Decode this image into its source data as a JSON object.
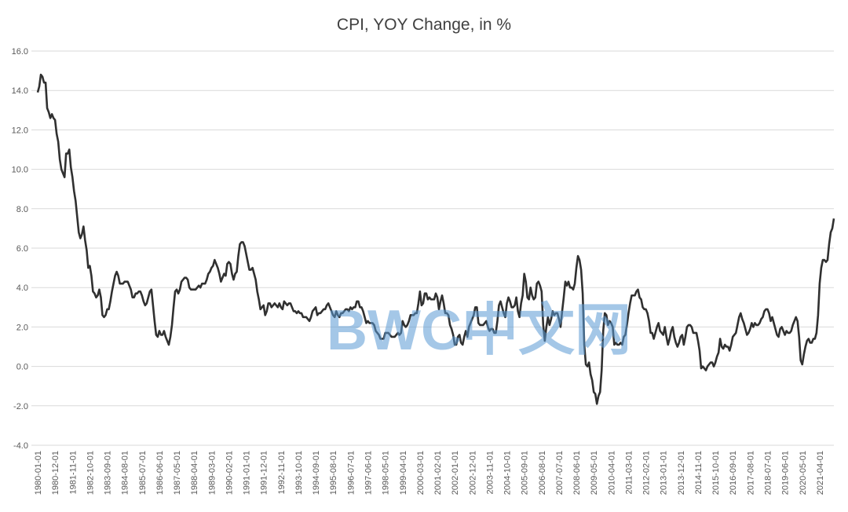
{
  "chart_data": {
    "type": "line",
    "title": "CPI, YOY Change, in %",
    "watermark": "BWC中文网",
    "categories": [
      "1980-01-01",
      null,
      null,
      null,
      null,
      null,
      null,
      null,
      null,
      null,
      null,
      "1980-12-01",
      null,
      null,
      null,
      null,
      null,
      null,
      null,
      null,
      null,
      null,
      "1981-11-01",
      null,
      null,
      null,
      null,
      null,
      null,
      null,
      null,
      null,
      null,
      "1982-10-01",
      null,
      null,
      null,
      null,
      null,
      null,
      null,
      null,
      null,
      null,
      "1983-09-01",
      null,
      null,
      null,
      null,
      null,
      null,
      null,
      null,
      null,
      null,
      "1984-08-01",
      null,
      null,
      null,
      null,
      null,
      null,
      null,
      null,
      null,
      null,
      "1985-07-01",
      null,
      null,
      null,
      null,
      null,
      null,
      null,
      null,
      null,
      null,
      "1986-06-01",
      null,
      null,
      null,
      null,
      null,
      null,
      null,
      null,
      null,
      null,
      "1987-05-01",
      null,
      null,
      null,
      null,
      null,
      null,
      null,
      null,
      null,
      null,
      "1988-04-01",
      null,
      null,
      null,
      null,
      null,
      null,
      null,
      null,
      null,
      null,
      "1989-03-01",
      null,
      null,
      null,
      null,
      null,
      null,
      null,
      null,
      null,
      null,
      "1990-02-01",
      null,
      null,
      null,
      null,
      null,
      null,
      null,
      null,
      null,
      null,
      "1991-01-01",
      null,
      null,
      null,
      null,
      null,
      null,
      null,
      null,
      null,
      null,
      "1991-12-01",
      null,
      null,
      null,
      null,
      null,
      null,
      null,
      null,
      null,
      null,
      "1992-11-01",
      null,
      null,
      null,
      null,
      null,
      null,
      null,
      null,
      null,
      null,
      "1993-10-01",
      null,
      null,
      null,
      null,
      null,
      null,
      null,
      null,
      null,
      null,
      "1994-09-01",
      null,
      null,
      null,
      null,
      null,
      null,
      null,
      null,
      null,
      null,
      "1995-08-01",
      null,
      null,
      null,
      null,
      null,
      null,
      null,
      null,
      null,
      null,
      "1996-07-01",
      null,
      null,
      null,
      null,
      null,
      null,
      null,
      null,
      null,
      null,
      "1997-06-01",
      null,
      null,
      null,
      null,
      null,
      null,
      null,
      null,
      null,
      null,
      "1998-05-01",
      null,
      null,
      null,
      null,
      null,
      null,
      null,
      null,
      null,
      null,
      "1999-04-01",
      null,
      null,
      null,
      null,
      null,
      null,
      null,
      null,
      null,
      null,
      "2000-03-01",
      null,
      null,
      null,
      null,
      null,
      null,
      null,
      null,
      null,
      null,
      "2001-02-01",
      null,
      null,
      null,
      null,
      null,
      null,
      null,
      null,
      null,
      null,
      "2002-01-01",
      null,
      null,
      null,
      null,
      null,
      null,
      null,
      null,
      null,
      null,
      "2002-12-01",
      null,
      null,
      null,
      null,
      null,
      null,
      null,
      null,
      null,
      null,
      "2003-11-01",
      null,
      null,
      null,
      null,
      null,
      null,
      null,
      null,
      null,
      null,
      "2004-10-01",
      null,
      null,
      null,
      null,
      null,
      null,
      null,
      null,
      null,
      null,
      "2005-09-01",
      null,
      null,
      null,
      null,
      null,
      null,
      null,
      null,
      null,
      null,
      "2006-08-01",
      null,
      null,
      null,
      null,
      null,
      null,
      null,
      null,
      null,
      null,
      "2007-07-01",
      null,
      null,
      null,
      null,
      null,
      null,
      null,
      null,
      null,
      null,
      "2008-06-01",
      null,
      null,
      null,
      null,
      null,
      null,
      null,
      null,
      null,
      null,
      "2009-05-01",
      null,
      null,
      null,
      null,
      null,
      null,
      null,
      null,
      null,
      null,
      "2010-04-01",
      null,
      null,
      null,
      null,
      null,
      null,
      null,
      null,
      null,
      null,
      "2011-03-01",
      null,
      null,
      null,
      null,
      null,
      null,
      null,
      null,
      null,
      null,
      "2012-02-01",
      null,
      null,
      null,
      null,
      null,
      null,
      null,
      null,
      null,
      null,
      "2013-01-01",
      null,
      null,
      null,
      null,
      null,
      null,
      null,
      null,
      null,
      null,
      "2013-12-01",
      null,
      null,
      null,
      null,
      null,
      null,
      null,
      null,
      null,
      null,
      "2014-11-01",
      null,
      null,
      null,
      null,
      null,
      null,
      null,
      null,
      null,
      null,
      "2015-10-01",
      null,
      null,
      null,
      null,
      null,
      null,
      null,
      null,
      null,
      null,
      "2016-09-01",
      null,
      null,
      null,
      null,
      null,
      null,
      null,
      null,
      null,
      null,
      "2017-08-01",
      null,
      null,
      null,
      null,
      null,
      null,
      null,
      null,
      null,
      null,
      "2018-07-01",
      null,
      null,
      null,
      null,
      null,
      null,
      null,
      null,
      null,
      null,
      "2019-06-01",
      null,
      null,
      null,
      null,
      null,
      null,
      null,
      null,
      null,
      null,
      "2020-05-01",
      null,
      null,
      null,
      null,
      null,
      null,
      null,
      null,
      null,
      null,
      "2021-04-01",
      null,
      null,
      null,
      null,
      null,
      null,
      null,
      null,
      null
    ],
    "series": [
      {
        "color": "#303030",
        "values": [
          13.9,
          14.2,
          14.8,
          14.7,
          14.4,
          14.4,
          13.1,
          12.9,
          12.6,
          12.8,
          12.6,
          12.5,
          11.8,
          11.4,
          10.5,
          10.0,
          9.8,
          9.6,
          10.8,
          10.8,
          11.0,
          10.1,
          9.6,
          8.9,
          8.4,
          7.6,
          6.8,
          6.5,
          6.7,
          7.1,
          6.4,
          5.9,
          5.0,
          5.1,
          4.6,
          3.8,
          3.7,
          3.5,
          3.6,
          3.9,
          3.5,
          2.6,
          2.5,
          2.6,
          2.9,
          2.9,
          3.3,
          3.8,
          4.2,
          4.6,
          4.8,
          4.6,
          4.2,
          4.2,
          4.2,
          4.3,
          4.3,
          4.3,
          4.1,
          3.9,
          3.5,
          3.5,
          3.7,
          3.7,
          3.8,
          3.8,
          3.6,
          3.3,
          3.1,
          3.2,
          3.5,
          3.8,
          3.9,
          3.1,
          2.3,
          1.6,
          1.5,
          1.8,
          1.6,
          1.6,
          1.8,
          1.5,
          1.3,
          1.1,
          1.5,
          2.1,
          3.0,
          3.8,
          3.9,
          3.7,
          3.9,
          4.3,
          4.4,
          4.5,
          4.5,
          4.4,
          4.0,
          3.9,
          3.9,
          3.9,
          3.9,
          4.0,
          4.1,
          4.0,
          4.2,
          4.2,
          4.2,
          4.4,
          4.7,
          4.8,
          5.0,
          5.1,
          5.4,
          5.2,
          5.0,
          4.7,
          4.3,
          4.5,
          4.7,
          4.6,
          5.2,
          5.3,
          5.2,
          4.7,
          4.4,
          4.7,
          4.8,
          5.6,
          6.2,
          6.3,
          6.3,
          6.1,
          5.7,
          5.3,
          4.9,
          4.9,
          5.0,
          4.7,
          4.4,
          3.8,
          3.4,
          2.9,
          3.0,
          3.1,
          2.6,
          2.8,
          3.2,
          3.2,
          3.0,
          3.1,
          3.2,
          3.1,
          3.0,
          3.2,
          3.0,
          2.9,
          3.3,
          3.2,
          3.1,
          3.2,
          3.2,
          3.0,
          2.8,
          2.8,
          2.7,
          2.8,
          2.7,
          2.7,
          2.5,
          2.5,
          2.5,
          2.4,
          2.3,
          2.5,
          2.8,
          2.9,
          3.0,
          2.6,
          2.7,
          2.7,
          2.8,
          2.9,
          2.9,
          3.1,
          3.2,
          3.0,
          2.8,
          2.6,
          2.5,
          2.8,
          2.6,
          2.5,
          2.7,
          2.7,
          2.8,
          2.9,
          2.9,
          2.8,
          3.0,
          2.9,
          3.0,
          3.0,
          3.3,
          3.3,
          3.0,
          3.0,
          2.8,
          2.5,
          2.2,
          2.3,
          2.2,
          2.2,
          2.2,
          2.1,
          1.8,
          1.7,
          1.6,
          1.4,
          1.4,
          1.4,
          1.7,
          1.7,
          1.7,
          1.6,
          1.5,
          1.5,
          1.5,
          1.6,
          1.7,
          1.6,
          1.7,
          2.3,
          2.1,
          2.0,
          2.1,
          2.3,
          2.6,
          2.6,
          2.6,
          2.7,
          2.7,
          3.2,
          3.8,
          3.1,
          3.2,
          3.7,
          3.7,
          3.4,
          3.5,
          3.4,
          3.4,
          3.4,
          3.7,
          3.5,
          2.9,
          3.3,
          3.6,
          3.2,
          2.7,
          2.7,
          2.6,
          2.1,
          1.9,
          1.6,
          1.1,
          1.1,
          1.5,
          1.6,
          1.2,
          1.1,
          1.5,
          1.8,
          1.5,
          2.0,
          2.2,
          2.4,
          2.6,
          3.0,
          3.0,
          2.2,
          2.1,
          2.1,
          2.1,
          2.2,
          2.3,
          2.0,
          1.8,
          1.9,
          1.9,
          1.7,
          1.7,
          2.3,
          3.1,
          3.3,
          3.0,
          2.7,
          2.5,
          3.2,
          3.5,
          3.3,
          3.0,
          3.0,
          3.1,
          3.5,
          2.8,
          2.5,
          3.2,
          3.6,
          4.7,
          4.3,
          3.5,
          3.4,
          4.0,
          3.6,
          3.4,
          3.5,
          4.2,
          4.3,
          4.1,
          3.8,
          2.1,
          1.3,
          2.0,
          2.5,
          2.1,
          2.4,
          2.8,
          2.6,
          2.7,
          2.7,
          2.4,
          2.0,
          2.8,
          3.5,
          4.3,
          4.1,
          4.3,
          4.0,
          4.0,
          3.9,
          4.2,
          5.0,
          5.6,
          5.4,
          4.9,
          3.7,
          1.1,
          0.1,
          0.0,
          0.2,
          -0.4,
          -0.7,
          -1.3,
          -1.4,
          -1.9,
          -1.5,
          -1.3,
          -0.2,
          1.8,
          2.7,
          2.6,
          2.1,
          2.3,
          2.2,
          2.0,
          1.1,
          1.2,
          1.1,
          1.1,
          1.2,
          1.1,
          1.5,
          1.6,
          2.1,
          2.7,
          3.2,
          3.6,
          3.6,
          3.6,
          3.8,
          3.9,
          3.5,
          3.4,
          3.0,
          2.9,
          2.9,
          2.7,
          2.3,
          1.7,
          1.7,
          1.4,
          1.7,
          2.0,
          2.2,
          1.8,
          1.7,
          1.6,
          2.0,
          1.5,
          1.1,
          1.4,
          1.8,
          2.0,
          1.5,
          1.2,
          1.0,
          1.2,
          1.5,
          1.6,
          1.1,
          1.5,
          2.0,
          2.1,
          2.1,
          2.0,
          1.7,
          1.7,
          1.7,
          1.3,
          0.8,
          -0.1,
          0.0,
          -0.1,
          -0.2,
          0.0,
          0.1,
          0.2,
          0.2,
          0.0,
          0.2,
          0.5,
          0.7,
          1.4,
          1.0,
          0.9,
          1.1,
          1.0,
          1.0,
          0.8,
          1.1,
          1.5,
          1.6,
          1.7,
          2.1,
          2.5,
          2.7,
          2.4,
          2.2,
          1.9,
          1.6,
          1.7,
          1.9,
          2.2,
          2.0,
          2.2,
          2.1,
          2.1,
          2.2,
          2.4,
          2.5,
          2.8,
          2.9,
          2.9,
          2.7,
          2.3,
          2.5,
          2.2,
          1.9,
          1.6,
          1.5,
          1.9,
          2.0,
          1.8,
          1.6,
          1.8,
          1.7,
          1.7,
          1.8,
          2.1,
          2.3,
          2.5,
          2.3,
          1.5,
          0.3,
          0.1,
          0.6,
          1.0,
          1.3,
          1.4,
          1.2,
          1.2,
          1.4,
          1.4,
          1.7,
          2.6,
          4.2,
          5.0,
          5.4,
          5.4,
          5.3,
          5.4,
          6.2,
          6.8,
          7.0,
          7.5
        ]
      }
    ],
    "ylim": [
      -4,
      16
    ],
    "yticks": [
      {
        "value": -4,
        "label": "-4.0"
      },
      {
        "value": -2,
        "label": "-2.0"
      },
      {
        "value": 0,
        "label": "0.0"
      },
      {
        "value": 2,
        "label": "2.0"
      },
      {
        "value": 4,
        "label": "4.0"
      },
      {
        "value": 6,
        "label": "6.0"
      },
      {
        "value": 8,
        "label": "8.0"
      },
      {
        "value": 10,
        "label": "10.0"
      },
      {
        "value": 12,
        "label": "12.0"
      },
      {
        "value": 14,
        "label": "14.0"
      },
      {
        "value": 16,
        "label": "16.0"
      }
    ],
    "grid": true
  }
}
